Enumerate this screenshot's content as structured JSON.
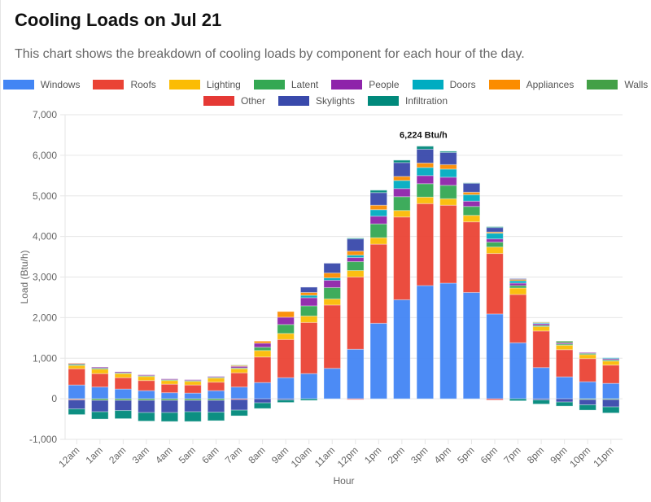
{
  "header": {
    "title": "Cooling Loads on Jul 21",
    "subtitle": "This chart shows the breakdown of cooling loads by component for each hour of the day."
  },
  "chart_data": {
    "type": "bar",
    "stacked": true,
    "xlabel": "Hour",
    "ylabel": "Load (Btu/h)",
    "ylim": [
      -1000,
      7000
    ],
    "yticks": [
      "-1,000",
      "0",
      "1,000",
      "2,000",
      "3,000",
      "4,000",
      "5,000",
      "6,000",
      "7,000"
    ],
    "grid": true,
    "legend": "top",
    "annotation": {
      "label": "6,224 Btu/h",
      "category": "3pm",
      "value": 6224
    },
    "categories": [
      "12am",
      "1am",
      "2am",
      "3am",
      "4am",
      "5am",
      "6am",
      "7am",
      "8am",
      "9am",
      "10am",
      "11am",
      "12pm",
      "1pm",
      "2pm",
      "3pm",
      "4pm",
      "5pm",
      "6pm",
      "7pm",
      "8pm",
      "9pm",
      "10pm",
      "11pm"
    ],
    "series": [
      {
        "name": "Windows",
        "color": "#4285F4",
        "values": [
          340,
          290,
          240,
          200,
          150,
          140,
          200,
          290,
          400,
          520,
          620,
          750,
          1220,
          1860,
          2440,
          2790,
          2850,
          2620,
          2090,
          1380,
          770,
          540,
          420,
          380
        ]
      },
      {
        "name": "Roofs",
        "color": "#EA4335",
        "values": [
          400,
          330,
          280,
          250,
          210,
          200,
          210,
          350,
          630,
          940,
          1260,
          1560,
          1780,
          1950,
          2040,
          2020,
          1920,
          1740,
          1490,
          1190,
          900,
          670,
          570,
          450
        ]
      },
      {
        "name": "Lighting",
        "color": "#FBBC04",
        "values": [
          80,
          110,
          100,
          100,
          90,
          90,
          100,
          100,
          160,
          150,
          160,
          150,
          160,
          160,
          160,
          160,
          160,
          160,
          160,
          160,
          110,
          110,
          100,
          100
        ]
      },
      {
        "name": "Latent",
        "color": "#34A853",
        "values": [
          30,
          25,
          20,
          20,
          20,
          20,
          20,
          20,
          80,
          220,
          250,
          280,
          220,
          340,
          340,
          330,
          330,
          220,
          120,
          60,
          30,
          30,
          30,
          30
        ]
      },
      {
        "name": "People",
        "color": "#8E24AA",
        "values": [
          20,
          25,
          25,
          20,
          20,
          20,
          20,
          40,
          100,
          180,
          200,
          180,
          100,
          190,
          200,
          200,
          200,
          130,
          80,
          60,
          40,
          30,
          20,
          30
        ]
      },
      {
        "name": "Doors",
        "color": "#00ACC1",
        "values": [
          0,
          0,
          0,
          0,
          0,
          0,
          0,
          0,
          0,
          0,
          60,
          60,
          60,
          160,
          200,
          200,
          200,
          160,
          140,
          60,
          20,
          0,
          0,
          20
        ]
      },
      {
        "name": "Appliances",
        "color": "#FB8C00",
        "values": [
          10,
          0,
          0,
          0,
          0,
          0,
          0,
          20,
          50,
          140,
          70,
          120,
          100,
          110,
          100,
          110,
          110,
          60,
          30,
          30,
          10,
          0,
          0,
          0
        ]
      },
      {
        "name": "Walls",
        "color": "#43A047",
        "values": [
          -10,
          -40,
          -40,
          -40,
          -40,
          -40,
          -40,
          10,
          0,
          0,
          0,
          0,
          0,
          0,
          0,
          0,
          0,
          0,
          0,
          0,
          10,
          40,
          -20,
          -20
        ]
      },
      {
        "name": "Other",
        "color": "#E53935",
        "values": [
          -20,
          0,
          0,
          0,
          0,
          0,
          0,
          -20,
          0,
          0,
          0,
          0,
          -20,
          0,
          0,
          0,
          0,
          0,
          -30,
          0,
          0,
          0,
          0,
          0
        ]
      },
      {
        "name": "Skylights",
        "color": "#3949AB",
        "values": [
          -220,
          -280,
          -250,
          -300,
          -300,
          -280,
          -290,
          -260,
          -100,
          -30,
          130,
          240,
          300,
          310,
          340,
          340,
          300,
          220,
          110,
          20,
          -30,
          -80,
          -130,
          -180
        ]
      },
      {
        "name": "Infiltration",
        "color": "#00897B",
        "values": [
          -140,
          -180,
          -200,
          -210,
          -220,
          -240,
          -210,
          -140,
          -140,
          -60,
          -40,
          0,
          20,
          60,
          60,
          74,
          30,
          10,
          20,
          -50,
          -100,
          -100,
          -130,
          -150
        ]
      }
    ]
  }
}
